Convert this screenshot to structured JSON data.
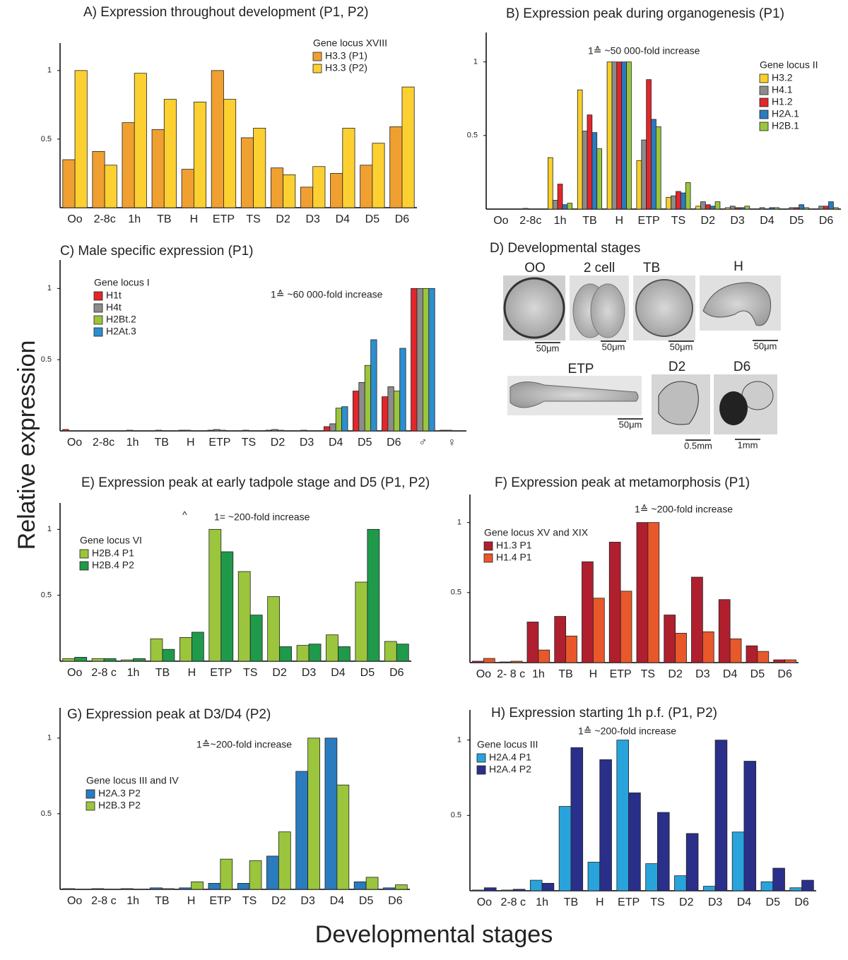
{
  "chart_data": [
    {
      "type": "bar",
      "title": "A) Expression throughout development (P1, P2)",
      "legend_title": "Gene locus XVIII",
      "categories": [
        "Oo",
        "2-8c",
        "1h",
        "TB",
        "H",
        "ETP",
        "TS",
        "D2",
        "D3",
        "D4",
        "D5",
        "D6"
      ],
      "series": [
        {
          "name": "H3.3 (P1)",
          "color": "#f0a030",
          "values": [
            0.35,
            0.41,
            0.62,
            0.57,
            0.28,
            1.0,
            0.51,
            0.29,
            0.15,
            0.25,
            0.31,
            0.59
          ]
        },
        {
          "name": "H3.3 (P2)",
          "color": "#fcd030",
          "values": [
            1.0,
            0.31,
            0.98,
            0.79,
            0.77,
            0.79,
            0.58,
            0.24,
            0.3,
            0.58,
            0.47,
            0.88
          ]
        }
      ],
      "ylim": [
        0,
        1.2
      ],
      "yticks": [
        0.5,
        1
      ]
    },
    {
      "type": "bar",
      "title": "B) Expression peak during organogenesis (P1)",
      "legend_title": "Gene locus II",
      "annotations": [
        "1≙ ~50 000-fold  increase"
      ],
      "categories": [
        "Oo",
        "2-8c",
        "1h",
        "TB",
        "H",
        "ETP",
        "TS",
        "D2",
        "D3",
        "D4",
        "D5",
        "D6"
      ],
      "series": [
        {
          "name": "H3.2",
          "color": "#f7d02a",
          "values": [
            0,
            0,
            0.35,
            0.81,
            1,
            0.33,
            0.08,
            0.02,
            0.01,
            0,
            0,
            0
          ]
        },
        {
          "name": "H4.1",
          "color": "#8c8c8c",
          "values": [
            0,
            0.005,
            0.06,
            0.53,
            1,
            0.47,
            0.09,
            0.05,
            0.02,
            0.01,
            0.01,
            0.02
          ]
        },
        {
          "name": "H1.2",
          "color": "#e3262a",
          "values": [
            0,
            0,
            0.17,
            0.64,
            1,
            0.88,
            0.12,
            0.03,
            0.01,
            0,
            0.01,
            0.02
          ]
        },
        {
          "name": "H2A.1",
          "color": "#2b7bbf",
          "values": [
            0,
            0,
            0.03,
            0.52,
            1,
            0.61,
            0.11,
            0.02,
            0.01,
            0.01,
            0.03,
            0.05
          ]
        },
        {
          "name": "H2B.1",
          "color": "#9bc53d",
          "values": [
            0,
            0,
            0.04,
            0.41,
            1,
            0.56,
            0.18,
            0.05,
            0.02,
            0.01,
            0.01,
            0.01
          ]
        }
      ],
      "ylim": [
        0,
        1.2
      ],
      "yticks": [
        0.5,
        1
      ]
    },
    {
      "type": "bar",
      "title": "C) Male specific expression (P1)",
      "legend_title": "Gene locus I",
      "annotations": [
        "1≙ ~60 000-fold  increase"
      ],
      "categories": [
        "Oo",
        "2-8c",
        "1h",
        "TB",
        "H",
        "ETP",
        "TS",
        "D2",
        "D3",
        "D4",
        "D5",
        "D6",
        "♂",
        "♀"
      ],
      "series": [
        {
          "name": "H1t",
          "color": "#e3262a",
          "values": [
            0.01,
            0,
            0,
            0,
            0.005,
            0.005,
            0,
            0.005,
            0,
            0.03,
            0.28,
            0.24,
            1,
            0.005
          ]
        },
        {
          "name": "H4t",
          "color": "#8c8c8c",
          "values": [
            0,
            0,
            0.005,
            0.005,
            0.005,
            0.01,
            0.005,
            0.01,
            0.005,
            0.05,
            0.34,
            0.31,
            1,
            0.005
          ]
        },
        {
          "name": "H2Bt.2",
          "color": "#9bc53d",
          "values": [
            0,
            0,
            0,
            0,
            0,
            0.005,
            0,
            0.005,
            0,
            0.16,
            0.46,
            0.28,
            1,
            0
          ]
        },
        {
          "name": "H2At.3",
          "color": "#2b8fd0",
          "values": [
            0,
            0,
            0,
            0,
            0,
            0,
            0,
            0,
            0,
            0.17,
            0.64,
            0.58,
            1,
            0
          ]
        }
      ],
      "ylim": [
        0,
        1.2
      ],
      "yticks": [
        0.5,
        1
      ]
    },
    {
      "type": "bar",
      "title": "E) Expression peak at early tadpole stage and D5 (P1, P2)",
      "legend_title": "Gene locus VI",
      "annotations": [
        "^",
        "1= ~200-fold increase"
      ],
      "categories": [
        "Oo",
        "2-8 c",
        "1h",
        "TB",
        "H",
        "ETP",
        "TS",
        "D2",
        "D3",
        "D4",
        "D5",
        "D6"
      ],
      "series": [
        {
          "name": "H2B.4 P1",
          "color": "#9bc53d",
          "values": [
            0.02,
            0.02,
            0.01,
            0.17,
            0.18,
            1,
            0.68,
            0.49,
            0.12,
            0.2,
            0.6,
            0.15
          ]
        },
        {
          "name": "H2B.4 P2",
          "color": "#1f9a4a",
          "values": [
            0.03,
            0.02,
            0.02,
            0.09,
            0.22,
            0.83,
            0.35,
            0.11,
            0.13,
            0.11,
            1,
            0.13
          ]
        }
      ],
      "ylim": [
        0,
        1.2
      ],
      "yticks": [
        0.5,
        1
      ]
    },
    {
      "type": "bar",
      "title": "F) Expression peak at metamorphosis (P1)",
      "legend_title": "Gene locus XV and XIX",
      "annotations": [
        "1≙ ~200-fold increase"
      ],
      "categories": [
        "Oo",
        "2- 8 c",
        "1h",
        "TB",
        "H",
        "ETP",
        "TS",
        "D2",
        "D3",
        "D4",
        "D5",
        "D6"
      ],
      "series": [
        {
          "name": "H1.3 P1",
          "color": "#b01f2e",
          "values": [
            0.01,
            0.005,
            0.29,
            0.33,
            0.72,
            0.86,
            1,
            0.34,
            0.61,
            0.45,
            0.12,
            0.02
          ]
        },
        {
          "name": "H1.4 P1",
          "color": "#e8582a",
          "values": [
            0.03,
            0.01,
            0.09,
            0.19,
            0.46,
            0.51,
            1,
            0.21,
            0.22,
            0.17,
            0.08,
            0.02
          ]
        }
      ],
      "ylim": [
        0,
        1.2
      ],
      "yticks": [
        0.5,
        1
      ]
    },
    {
      "type": "bar",
      "title": "G) Expression peak at D3/D4 (P2)",
      "legend_title": "Gene locus III and IV",
      "annotations": [
        "1≙~200-fold increase"
      ],
      "categories": [
        "Oo",
        "2-8 c",
        "1h",
        "TB",
        "H",
        "ETP",
        "TS",
        "D2",
        "D3",
        "D4",
        "D5",
        "D6"
      ],
      "series": [
        {
          "name": "H2A.3 P2",
          "color": "#2b7bbf",
          "values": [
            0.005,
            0.005,
            0.005,
            0.01,
            0.01,
            0.04,
            0.04,
            0.22,
            0.78,
            1,
            0.05,
            0.01
          ]
        },
        {
          "name": "H2B.3 P2",
          "color": "#9bc53d",
          "values": [
            0,
            0,
            0,
            0.005,
            0.05,
            0.2,
            0.19,
            0.38,
            1,
            0.69,
            0.08,
            0.03
          ]
        }
      ],
      "ylim": [
        0,
        1.2
      ],
      "yticks": [
        0.5,
        1
      ]
    },
    {
      "type": "bar",
      "title": "H) Expression starting 1h p.f. (P1, P2)",
      "legend_title": "Gene locus III",
      "annotations": [
        "1≙ ~200-fold increase"
      ],
      "categories": [
        "Oo",
        "2-8 c",
        "1h",
        "TB",
        "H",
        "ETP",
        "TS",
        "D2",
        "D3",
        "D4",
        "D5",
        "D6"
      ],
      "series": [
        {
          "name": "H2A.4 P1",
          "color": "#29a3dc",
          "values": [
            0.005,
            0.005,
            0.07,
            0.56,
            0.19,
            1,
            0.18,
            0.1,
            0.03,
            0.39,
            0.06,
            0.02
          ]
        },
        {
          "name": "H2A.4 P2",
          "color": "#2a2f8a",
          "values": [
            0.02,
            0.01,
            0.05,
            0.95,
            0.87,
            0.65,
            0.52,
            0.38,
            1,
            0.86,
            0.15,
            0.07
          ]
        }
      ],
      "ylim": [
        0,
        1.2
      ],
      "yticks": [
        0.5,
        1
      ]
    }
  ],
  "y_label": "Relative expression",
  "x_label": "Developmental stages",
  "panel_d": {
    "title": "D) Developmental stages",
    "images": [
      {
        "label": "OO",
        "scale": "50μm"
      },
      {
        "label": "2 cell",
        "scale": "50μm"
      },
      {
        "label": "TB",
        "scale": "50μm"
      },
      {
        "label": "H",
        "scale": "50μm"
      },
      {
        "label": "ETP",
        "scale": "50μm"
      },
      {
        "label": "D2",
        "scale": "0.5mm"
      },
      {
        "label": "D6",
        "scale": "1mm"
      }
    ]
  }
}
